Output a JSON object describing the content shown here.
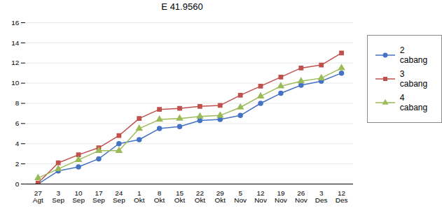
{
  "chart_data": {
    "type": "line",
    "title": "E 41.9560",
    "categories": [
      "27\nAgt",
      "3\nSep",
      "10\nSep",
      "17\nSep",
      "24\nSep",
      "1\nOkt",
      "8\nOkt",
      "15\nOkt",
      "22\nOkt",
      "29\nOkt",
      "5\nNov",
      "12\nNov",
      "19\nNov",
      "26\nNov",
      "3\nDes",
      "12\nDes"
    ],
    "series": [
      {
        "name": "2 cabang",
        "color": "#4472C4",
        "marker": "circle",
        "values": [
          0.0,
          1.3,
          1.7,
          2.5,
          4.0,
          4.4,
          5.5,
          5.7,
          6.3,
          6.4,
          6.8,
          8.0,
          9.0,
          9.8,
          10.2,
          11.0
        ]
      },
      {
        "name": "3 cabang",
        "color": "#C0504D",
        "marker": "square",
        "values": [
          0.1,
          2.1,
          2.9,
          3.6,
          4.8,
          6.5,
          7.4,
          7.5,
          7.7,
          7.8,
          8.8,
          9.7,
          10.6,
          11.5,
          11.8,
          13.0
        ]
      },
      {
        "name": "4 cabang",
        "color": "#9BBB59",
        "marker": "triangle",
        "values": [
          0.6,
          1.5,
          2.4,
          3.3,
          3.3,
          5.5,
          6.4,
          6.5,
          6.7,
          6.8,
          7.6,
          8.7,
          9.7,
          10.2,
          10.5,
          11.5
        ]
      }
    ],
    "ylim": [
      0,
      16
    ],
    "yticks": [
      0,
      2,
      4,
      6,
      8,
      10,
      12,
      14,
      16
    ],
    "grid": true,
    "legend": "right"
  }
}
